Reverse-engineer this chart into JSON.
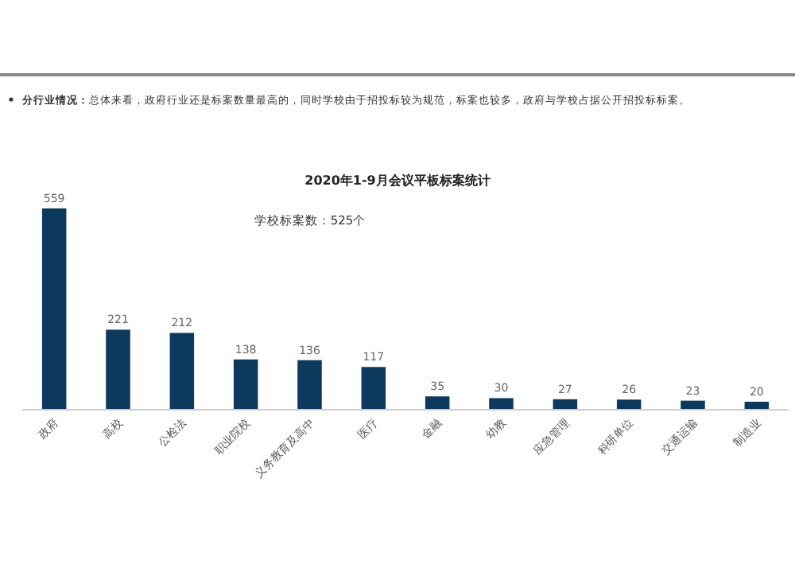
{
  "chart_data": {
    "type": "bar",
    "title": "2020年1-9月会议平板标案统计",
    "subtitle": "分行业情况：总体来看，政府行业还是标案数量最高的，同时学校由于招投标较为规范，标案也较多，政府与学校占据公开招投标标案。",
    "categories": [
      "政府",
      "高校",
      "公检法",
      "职业院校",
      "义务教育及高中",
      "医疗",
      "金融",
      "幼教",
      "应急管理",
      "科研单位",
      "交通运输",
      "制造业"
    ],
    "values": [
      559,
      221,
      212,
      138,
      136,
      117,
      35,
      30,
      27,
      26,
      23,
      20
    ],
    "color": "#0d3a5c",
    "data_labels": true,
    "annotations": [
      "学校标案数：525个"
    ]
  }
}
